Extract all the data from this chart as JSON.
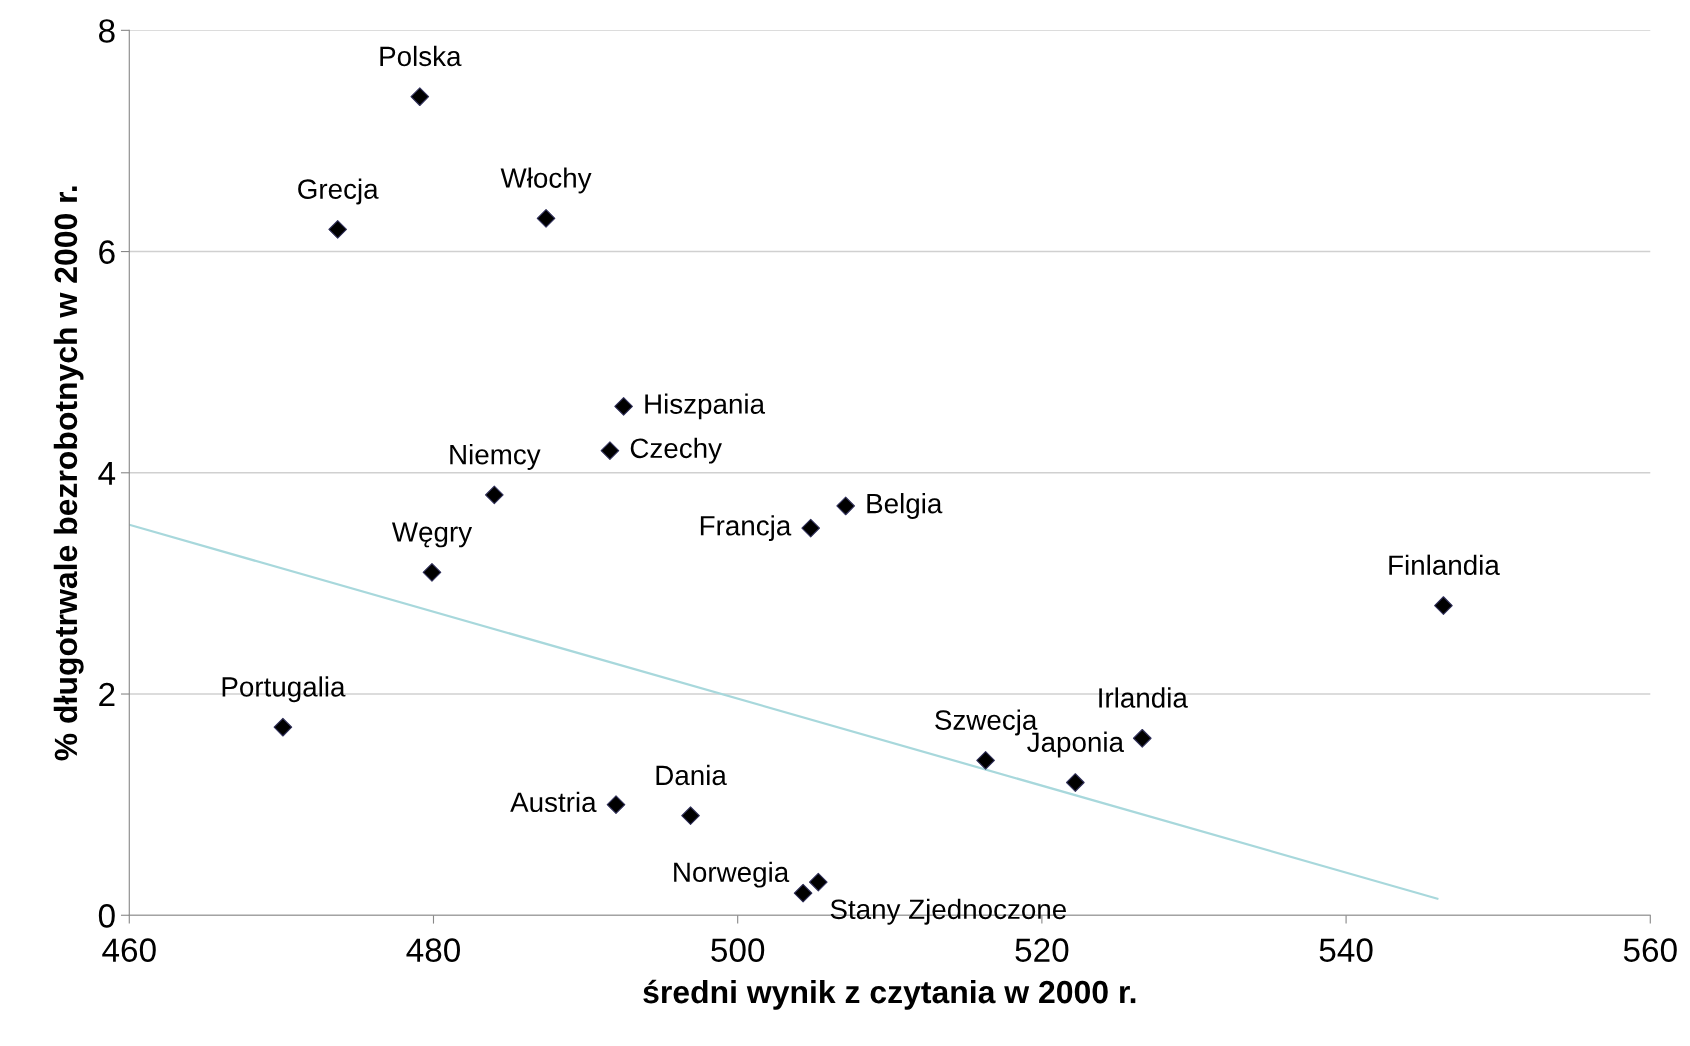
{
  "chart_data": {
    "type": "scatter",
    "xlabel": "średni wynik z czytania w 2000 r.",
    "ylabel": "% długotrwale bezrobotnych w 2000 r.",
    "xlim": [
      460,
      560
    ],
    "xticks": [
      460,
      480,
      500,
      520,
      540,
      560
    ],
    "ylim": [
      0,
      8
    ],
    "yticks": [
      0,
      2,
      4,
      6,
      8
    ],
    "grid": "y",
    "legend": false,
    "series": [
      {
        "marker": "diamond",
        "color": "#000000",
        "x": [
          479.1,
          473.7,
          487.4,
          492.5,
          491.6,
          484.0,
          479.9,
          507.1,
          504.8,
          546.4,
          470.1,
          516.3,
          526.6,
          522.2,
          492.0,
          496.9,
          504.3,
          505.3
        ],
        "values": [
          7.4,
          6.2,
          6.3,
          4.6,
          4.2,
          3.8,
          3.1,
          3.7,
          3.5,
          2.8,
          1.7,
          1.4,
          1.6,
          1.2,
          1.0,
          0.9,
          0.2,
          0.3
        ]
      },
      {
        "type": "line",
        "marker": "none",
        "color": "#a8d8dc",
        "x": [
          460,
          546.0
        ],
        "values": [
          3.53,
          0.15
        ]
      }
    ],
    "annotations": [
      {
        "text": "Polska",
        "x": 479.1,
        "y": 7.4
      },
      {
        "text": "Grecja",
        "x": 473.7,
        "y": 6.2
      },
      {
        "text": "Włochy",
        "x": 487.4,
        "y": 6.3
      },
      {
        "text": "Hiszpania",
        "x": 492.5,
        "y": 4.6
      },
      {
        "text": "Czechy",
        "x": 491.6,
        "y": 4.2
      },
      {
        "text": "Niemcy",
        "x": 484.0,
        "y": 3.8
      },
      {
        "text": "Węgry",
        "x": 479.9,
        "y": 3.1
      },
      {
        "text": "Belgia",
        "x": 507.1,
        "y": 3.7
      },
      {
        "text": "Francja",
        "x": 504.8,
        "y": 3.5
      },
      {
        "text": "Finlandia",
        "x": 546.4,
        "y": 2.8
      },
      {
        "text": "Portugalia",
        "x": 470.1,
        "y": 1.7
      },
      {
        "text": "Szwecja",
        "x": 516.3,
        "y": 1.4
      },
      {
        "text": "Irlandia",
        "x": 526.6,
        "y": 1.6
      },
      {
        "text": "Japonia",
        "x": 522.2,
        "y": 1.2
      },
      {
        "text": "Austria",
        "x": 492.0,
        "y": 1.0
      },
      {
        "text": "Dania",
        "x": 496.9,
        "y": 0.9
      },
      {
        "text": "Norwegia",
        "x": 504.3,
        "y": 0.2
      },
      {
        "text": "Stany Zjednoczone",
        "x": 505.3,
        "y": 0.3
      }
    ]
  }
}
